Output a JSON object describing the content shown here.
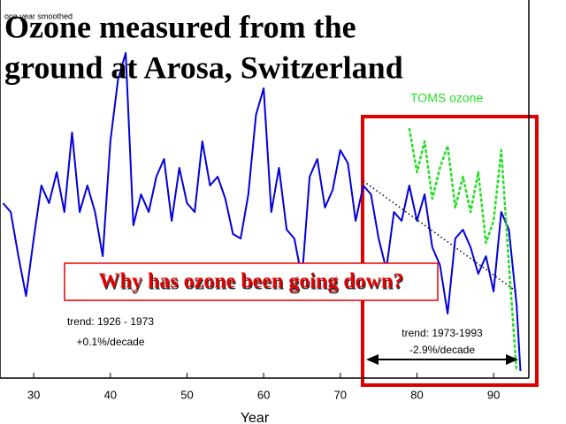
{
  "chart_data": {
    "type": "line",
    "title_lines": [
      "Ozone measured from the",
      "ground at Arosa, Switzerland"
    ],
    "note": "one year smoothed",
    "x_label": "Year",
    "question": "Why has ozone been going down?",
    "annotations": [
      "trend: 1926 - 1973",
      "+0.1%/decade",
      "trend: 1973-1993",
      "-2.9%/decade"
    ],
    "xlim": [
      25.6,
      94.6
    ],
    "xticks": [
      30,
      40,
      50,
      60,
      70,
      80,
      90
    ],
    "ylim": [
      0,
      428
    ],
    "series": [
      {
        "color": "#0000dd",
        "style": "solid",
        "x": [
          26,
          27,
          28,
          29,
          30,
          31,
          32,
          33,
          34,
          35,
          36,
          37,
          38,
          39,
          40,
          41,
          42,
          43,
          44,
          45,
          46,
          47,
          48,
          49,
          50,
          51,
          52,
          53,
          54,
          55,
          56,
          57,
          58,
          59,
          60,
          61,
          62,
          63,
          64,
          65,
          66,
          67,
          68,
          69,
          70,
          71,
          72,
          73,
          74,
          75,
          76,
          77,
          78,
          79,
          80,
          81,
          82,
          83,
          84,
          85,
          86,
          87,
          88,
          89,
          90,
          91,
          92,
          93,
          93.5
        ],
        "values": [
          198,
          188,
          138,
          93,
          158,
          218,
          198,
          233,
          188,
          278,
          188,
          218,
          188,
          138,
          268,
          338,
          368,
          173,
          208,
          188,
          228,
          248,
          178,
          238,
          198,
          188,
          268,
          218,
          228,
          203,
          163,
          158,
          208,
          298,
          328,
          188,
          238,
          168,
          158,
          113,
          228,
          248,
          193,
          213,
          258,
          243,
          178,
          218,
          208,
          158,
          123,
          188,
          178,
          218,
          178,
          208,
          148,
          128,
          73,
          158,
          168,
          148,
          118,
          138,
          98,
          188,
          168,
          83,
          8
        ]
      },
      {
        "name": "TOMS ozone",
        "color": "#22dd22",
        "style": "dotted",
        "x": [
          79,
          80,
          81,
          82,
          83,
          84,
          85,
          86,
          87,
          88,
          89,
          90,
          91,
          92,
          93
        ],
        "values": [
          283,
          233,
          268,
          203,
          238,
          263,
          193,
          228,
          188,
          233,
          153,
          178,
          258,
          128,
          8
        ]
      },
      {
        "color": "#000000",
        "style": "trend",
        "x": [
          73,
          93
        ],
        "values": [
          223,
          98
        ]
      }
    ]
  }
}
